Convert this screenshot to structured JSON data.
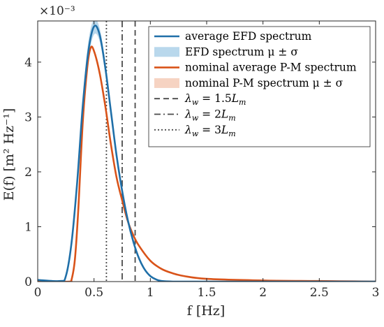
{
  "chart_data": {
    "type": "line",
    "xlabel": "f [Hz]",
    "ylabel": "E(f) [m² Hz⁻¹]",
    "y_exponent": "×10⁻³",
    "xlim": [
      0,
      3
    ],
    "ylim": [
      0,
      0.00475
    ],
    "xticks": [
      0,
      0.5,
      1,
      1.5,
      2,
      2.5,
      3
    ],
    "xtick_labels": [
      "0",
      "0.5",
      "1",
      "1.5",
      "2",
      "2.5",
      "3"
    ],
    "yticks": [
      0,
      0.001,
      0.002,
      0.003,
      0.004
    ],
    "ytick_labels": [
      "0",
      "1",
      "2",
      "3",
      "4"
    ],
    "grid": false,
    "legend_position": "top-right",
    "series": [
      {
        "name": "average EFD spectrum",
        "color": "#1f6fa8",
        "band_name": "EFD spectrum μ ± σ",
        "band_color": "#b9d8ec",
        "x": [
          0,
          0.2,
          0.25,
          0.3,
          0.35,
          0.4,
          0.45,
          0.5,
          0.55,
          0.6,
          0.65,
          0.7,
          0.75,
          0.8,
          0.85,
          0.9,
          0.95,
          1.0,
          1.05,
          1.1,
          1.2,
          1.5,
          2.0,
          3.0
        ],
        "y": [
          3e-05,
          1e-05,
          0.0001,
          0.0007,
          0.0018,
          0.0032,
          0.0042,
          0.00465,
          0.0045,
          0.0039,
          0.0031,
          0.0023,
          0.00165,
          0.00112,
          0.00072,
          0.00042,
          0.00022,
          0.0001,
          4e-05,
          1e-05,
          0,
          0,
          0,
          0
        ],
        "y_low": [
          2e-05,
          1e-05,
          9e-05,
          0.00065,
          0.0017,
          0.00305,
          0.00405,
          0.0045,
          0.00438,
          0.0038,
          0.00302,
          0.00224,
          0.0016,
          0.00108,
          0.00069,
          0.0004,
          0.0002,
          9e-05,
          3e-05,
          1e-05,
          0,
          0,
          0,
          0
        ],
        "y_high": [
          4e-05,
          2e-05,
          0.00012,
          0.00075,
          0.0019,
          0.00335,
          0.00438,
          0.00478,
          0.00462,
          0.004,
          0.00318,
          0.00236,
          0.0017,
          0.00116,
          0.00075,
          0.00044,
          0.00024,
          0.00011,
          5e-05,
          2e-05,
          0,
          0,
          0,
          0
        ]
      },
      {
        "name": "nominal average P-M spectrum",
        "color": "#d95319",
        "band_name": "nominal P-M spectrum μ ± σ",
        "band_color": "#f6d3c2",
        "x": [
          0,
          0.28,
          0.3,
          0.33,
          0.36,
          0.4,
          0.44,
          0.47,
          0.5,
          0.55,
          0.6,
          0.65,
          0.7,
          0.75,
          0.8,
          0.85,
          0.9,
          1.0,
          1.1,
          1.2,
          1.3,
          1.5,
          2.0,
          2.5,
          3.0
        ],
        "y": [
          0,
          0,
          3e-05,
          0.0004,
          0.0013,
          0.0029,
          0.0039,
          0.00426,
          0.0042,
          0.0038,
          0.0032,
          0.0025,
          0.0019,
          0.00148,
          0.0011,
          0.00084,
          0.00065,
          0.00038,
          0.00023,
          0.00015,
          0.0001,
          5e-05,
          2e-05,
          1e-05,
          0
        ]
      }
    ],
    "vlines": [
      {
        "name": "λw = 1.5Lm",
        "legend_main": "λ",
        "legend_sub1": "w",
        "legend_mid": " = 1.5",
        "legend_tail": "L",
        "legend_sub2": "m",
        "x": 0.865,
        "style": "dashed"
      },
      {
        "name": "λw = 2Lm",
        "legend_main": "λ",
        "legend_sub1": "w",
        "legend_mid": " = 2",
        "legend_tail": "L",
        "legend_sub2": "m",
        "x": 0.75,
        "style": "dashdot"
      },
      {
        "name": "λw = 3Lm",
        "legend_main": "λ",
        "legend_sub1": "w",
        "legend_mid": " = 3",
        "legend_tail": "L",
        "legend_sub2": "m",
        "x": 0.61,
        "style": "dotted"
      }
    ],
    "vline_color": "#4a4a4a"
  }
}
